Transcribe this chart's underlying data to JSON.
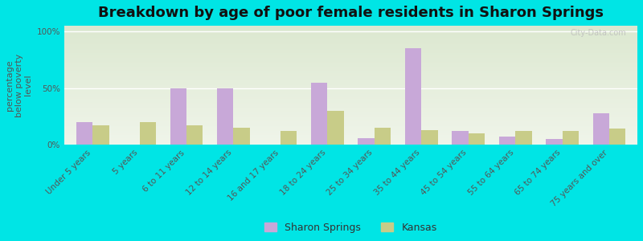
{
  "title": "Breakdown by age of poor female residents in Sharon Springs",
  "ylabel": "percentage\nbelow poverty\nlevel",
  "categories": [
    "Under 5 years",
    "5 years",
    "6 to 11 years",
    "12 to 14 years",
    "16 and 17 years",
    "18 to 24 years",
    "25 to 34 years",
    "35 to 44 years",
    "45 to 54 years",
    "55 to 64 years",
    "65 to 74 years",
    "75 years and over"
  ],
  "sharon_springs": [
    20,
    0,
    50,
    50,
    0,
    55,
    6,
    85,
    12,
    7,
    5,
    28
  ],
  "kansas": [
    17,
    20,
    17,
    15,
    12,
    30,
    15,
    13,
    10,
    12,
    12,
    14
  ],
  "sharon_color": "#c8a8d8",
  "kansas_color": "#c8cc88",
  "background_outer": "#00e5e5",
  "background_inner_top": "#dce8d0",
  "background_inner_bottom": "#f0f5ea",
  "ylim": [
    0,
    100
  ],
  "ytick_labels": [
    "0%",
    "50%",
    "100%"
  ],
  "bar_width": 0.35,
  "legend_sharon": "Sharon Springs",
  "legend_kansas": "Kansas",
  "title_fontsize": 13,
  "axis_label_fontsize": 8,
  "tick_fontsize": 7.5
}
